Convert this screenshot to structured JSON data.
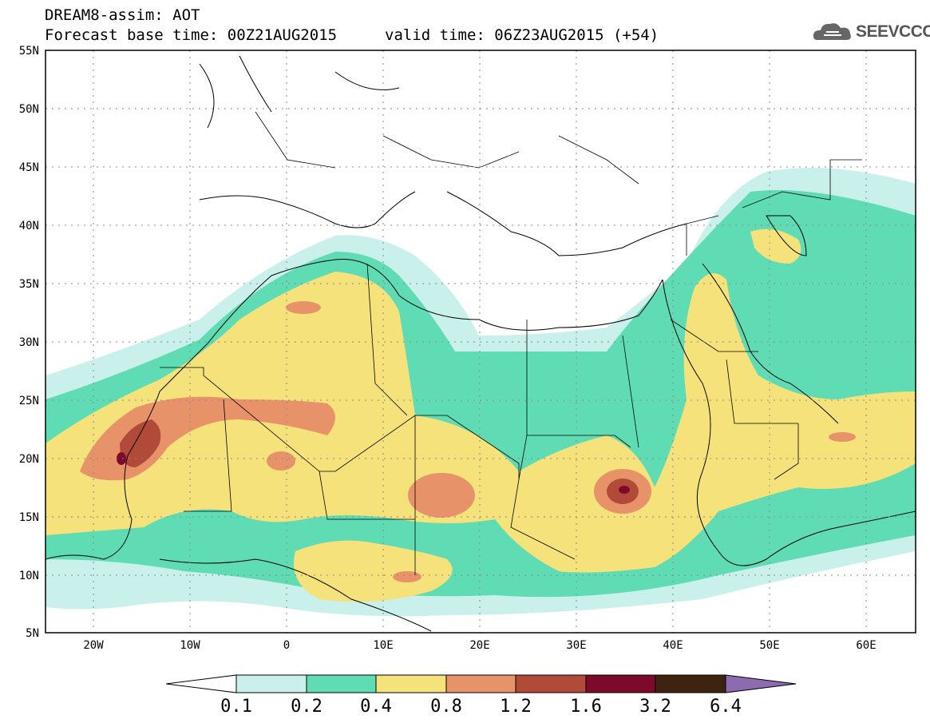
{
  "header": {
    "line1": "DREAM8-assim: AOT",
    "line2": "Forecast base time: 00Z21AUG2015",
    "line3": "valid time: 06Z23AUG2015 (+54)"
  },
  "logo": {
    "text": "SEEVCCC",
    "icon": "cloud-icon"
  },
  "map": {
    "lon_range": [
      -25,
      65
    ],
    "lat_range": [
      5,
      55
    ],
    "lon_labels": [
      "20W",
      "10W",
      "0",
      "10E",
      "20E",
      "30E",
      "40E",
      "50E",
      "60E"
    ],
    "lat_labels": [
      "55N",
      "50N",
      "45N",
      "40N",
      "35N",
      "30N",
      "25N",
      "20N",
      "15N",
      "10N",
      "5N"
    ],
    "grid": true
  },
  "colorbar": {
    "labels": [
      "0.1",
      "0.2",
      "0.4",
      "0.8",
      "1.2",
      "1.6",
      "3.2",
      "6.4"
    ],
    "colors": [
      "#ffffff",
      "#c9f0eb",
      "#5fdcb4",
      "#f5e27a",
      "#e8926a",
      "#b24a3a",
      "#7d0a2a",
      "#3e2410",
      "#8e6bb0"
    ]
  }
}
